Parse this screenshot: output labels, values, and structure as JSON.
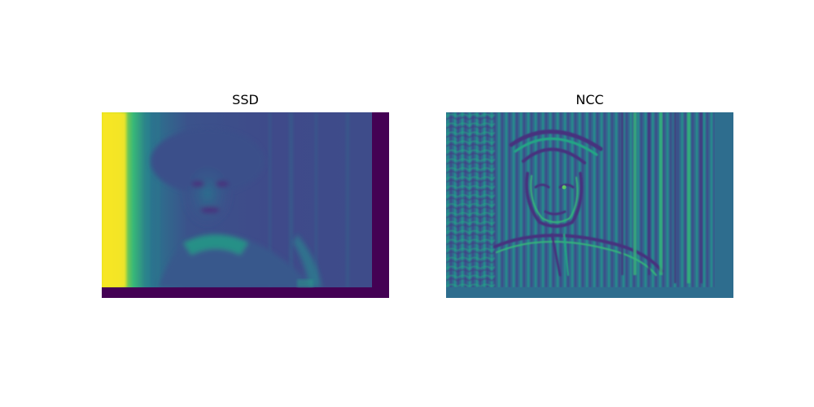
{
  "panels": [
    {
      "title": "SSD",
      "colormap": "viridis"
    },
    {
      "title": "NCC",
      "colormap": "viridis"
    }
  ],
  "colors": {
    "background": "#ffffff",
    "viridis_low": "#440154",
    "viridis_mid_low": "#3b528b",
    "viridis_mid": "#21918c",
    "viridis_mid_high": "#5ec962",
    "viridis_high": "#fde725"
  }
}
